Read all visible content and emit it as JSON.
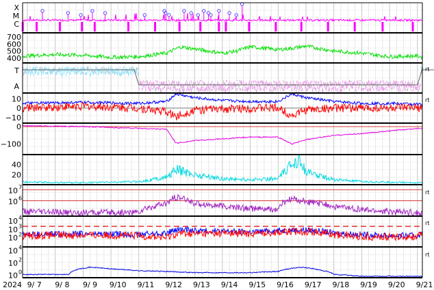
{
  "chart_data": [
    {
      "type": "line",
      "panel": "xray-flares",
      "y_tick_labels": [
        "X",
        "M",
        "C"
      ],
      "series": [
        {
          "color": "#ff00ff"
        }
      ],
      "event_markers": {
        "color": "#6040ff",
        "dates_approx": [
          "9/7 13:00",
          "9/8 11:00",
          "9/8 22:00",
          "9/9 8:00",
          "9/9 19:00",
          "9/11 5:00",
          "9/11 22:00",
          "9/11 23:00",
          "9/12 2:00",
          "9/12 15:00",
          "9/12 21:00",
          "9/13 3:00",
          "9/13 8:00",
          "9/13 12:00",
          "9/13 14:00",
          "9/13 21:00",
          "9/14 6:00",
          "9/14 12:00",
          "9/14 17:00"
        ]
      },
      "pink_bars_dates_approx": [
        "9/6 20:00",
        "9/7 8:00",
        "9/8 4:00",
        "9/8 23:00",
        "9/9 10:00",
        "9/10 15:00",
        "9/11 14:00",
        "9/12 11:00",
        "9/13 5:00",
        "9/13 21:00",
        "9/14 3:00",
        "9/14 23:00",
        "9/15 22:00",
        "9/16 20:00",
        "9/17 19:00",
        "9/18 18:00",
        "9/19 18:00",
        "9/20 20:00",
        "9/21 19:00"
      ]
    },
    {
      "type": "line",
      "panel": "solar-wind-speed",
      "y_tick_labels": [
        "700",
        "600",
        "500",
        "400"
      ],
      "ylim": [
        330,
        760
      ],
      "series": [
        {
          "color": "#00e000"
        }
      ],
      "x": [
        "9/6 20:00",
        "9/8 0:00",
        "9/9 0:00",
        "9/10 0:00",
        "9/11 0:00",
        "9/12 0:00",
        "9/12 12:00",
        "9/13 0:00",
        "9/14 0:00",
        "9/14 12:00",
        "9/15 0:00",
        "9/16 0:00",
        "9/16 12:00",
        "9/17 0:00",
        "9/18 0:00",
        "9/19 0:00",
        "9/20 0:00",
        "9/21 0:00",
        "9/21 12:00",
        "9/21 20:00"
      ],
      "y": [
        430,
        450,
        440,
        410,
        420,
        470,
        560,
        530,
        470,
        500,
        560,
        520,
        540,
        570,
        500,
        470,
        420,
        430,
        380,
        410
      ]
    },
    {
      "type": "scatter",
      "panel": "imf-direction",
      "y_tick_labels": [
        "T",
        "A"
      ],
      "series": [
        {
          "color": "#a0e8ff"
        },
        {
          "color": "#f0a8f0"
        },
        {
          "color": "#c8c8c8"
        }
      ],
      "level_line": {
        "color": "#606060",
        "x": [
          "9/6 20:00",
          "9/10 20:00",
          "9/11 0:00",
          "9/21 0:00",
          "9/21 4:00",
          "9/21 20:00"
        ],
        "y": [
          "T",
          "T",
          "A",
          "A",
          "T",
          "T"
        ]
      }
    },
    {
      "type": "line",
      "panel": "imf-bt-bz",
      "y_tick_labels": [
        "10",
        "0",
        "−10"
      ],
      "ylim": [
        -16,
        16
      ],
      "series": [
        {
          "color": "#0000ff",
          "x": [
            "9/6 20:00",
            "9/9 0:00",
            "9/11 0:00",
            "9/12 0:00",
            "9/12 8:00",
            "9/13 0:00",
            "9/14 0:00",
            "9/15 0:00",
            "9/16 0:00",
            "9/16 12:00",
            "9/17 0:00",
            "9/18 0:00",
            "9/19 0:00",
            "9/20 0:00",
            "9/21 0:00",
            "9/21 20:00"
          ],
          "y": [
            5,
            6,
            5,
            7,
            15,
            11,
            8,
            7,
            7,
            15,
            11,
            7,
            5,
            5,
            4,
            5
          ]
        },
        {
          "color": "#ff0000",
          "x": [
            "9/6 20:00",
            "9/9 0:00",
            "9/11 0:00",
            "9/12 0:00",
            "9/12 8:00",
            "9/13 0:00",
            "9/14 0:00",
            "9/15 0:00",
            "9/16 0:00",
            "9/16 12:00",
            "9/17 0:00",
            "9/18 0:00",
            "9/19 0:00",
            "9/20 0:00",
            "9/21 0:00",
            "9/21 20:00"
          ],
          "y": [
            0,
            2,
            0,
            -4,
            -9,
            -2,
            -1,
            0,
            0,
            -8,
            -2,
            0,
            0,
            0,
            0,
            0
          ]
        }
      ]
    },
    {
      "type": "line",
      "panel": "magnetometer",
      "y_tick_labels": [
        "0",
        "−100"
      ],
      "ylim": [
        -160,
        20
      ],
      "series": [
        {
          "color": "#e000e0"
        }
      ],
      "x": [
        "9/6 20:00",
        "9/9 0:00",
        "9/11 0:00",
        "9/12 0:00",
        "9/12 8:00",
        "9/13 0:00",
        "9/14 0:00",
        "9/15 0:00",
        "9/16 0:00",
        "9/16 12:00",
        "9/17 0:00",
        "9/18 0:00",
        "9/19 0:00",
        "9/20 0:00",
        "9/21 0:00",
        "9/21 20:00"
      ],
      "y": [
        5,
        0,
        -10,
        -15,
        -95,
        -80,
        -70,
        -60,
        -60,
        -100,
        -75,
        -50,
        -40,
        -25,
        -10,
        -5
      ]
    },
    {
      "type": "line",
      "panel": "density",
      "y_tick_labels": [
        "40",
        "20"
      ],
      "ylim": [
        0,
        60
      ],
      "series": [
        {
          "color": "#00d8e0"
        }
      ],
      "x": [
        "9/6 20:00",
        "9/9 0:00",
        "9/11 0:00",
        "9/12 0:00",
        "9/12 8:00",
        "9/13 0:00",
        "9/14 0:00",
        "9/15 0:00",
        "9/16 0:00",
        "9/16 18:00",
        "9/17 0:00",
        "9/18 0:00",
        "9/19 0:00",
        "9/20 0:00",
        "9/21 0:00",
        "9/21 20:00"
      ],
      "y": [
        5,
        4,
        6,
        15,
        30,
        20,
        12,
        10,
        12,
        55,
        25,
        10,
        6,
        5,
        4,
        5
      ]
    },
    {
      "type": "line",
      "panel": "electron-flux",
      "y_tick_labels": [
        "10^7",
        "10^6"
      ],
      "log_scale": true,
      "ylim": [
        40000,
        30000000
      ],
      "series": [
        {
          "color": "#a020c0"
        }
      ],
      "x": [
        "9/6 20:00",
        "9/9 0:00",
        "9/11 0:00",
        "9/12 0:00",
        "9/12 8:00",
        "9/13 0:00",
        "9/14 0:00",
        "9/15 0:00",
        "9/16 0:00",
        "9/16 12:00",
        "9/17 0:00",
        "9/18 0:00",
        "9/19 0:00",
        "9/20 0:00",
        "9/21 0:00",
        "9/21 20:00"
      ],
      "y": [
        100000,
        80000,
        90000,
        500000,
        2000000,
        600000,
        300000,
        200000,
        150000,
        1500000,
        800000,
        300000,
        150000,
        100000,
        80000,
        70000
      ]
    },
    {
      "type": "line",
      "panel": "proton-flux",
      "y_tick_labels": [
        "10^4",
        "10^3",
        "10^2"
      ],
      "log_scale": true,
      "ylim": [
        7,
        30000
      ],
      "threshold_color": "#e00000",
      "series": [
        {
          "color": "#0000ff",
          "x": [
            "9/6 20:00",
            "9/9 0:00",
            "9/11 0:00",
            "9/12 0:00",
            "9/12 12:00",
            "9/13 0:00",
            "9/14 0:00",
            "9/15 0:00",
            "9/16 0:00",
            "9/17 0:00",
            "9/18 0:00",
            "9/19 0:00",
            "9/20 0:00",
            "9/21 0:00",
            "9/21 20:00"
          ],
          "y": [
            200,
            250,
            200,
            300,
            800,
            600,
            500,
            400,
            600,
            700,
            300,
            200,
            150,
            150,
            600
          ]
        },
        {
          "color": "#ff0000",
          "x": [
            "9/6 20:00",
            "9/9 0:00",
            "9/11 0:00",
            "9/12 0:00",
            "9/12 12:00",
            "9/13 0:00",
            "9/14 0:00",
            "9/15 0:00",
            "9/16 0:00",
            "9/17 0:00",
            "9/18 0:00",
            "9/19 0:00",
            "9/20 0:00",
            "9/21 0:00",
            "9/21 20:00"
          ],
          "y": [
            150,
            180,
            150,
            80,
            300,
            250,
            300,
            250,
            400,
            500,
            200,
            120,
            100,
            120,
            400
          ]
        }
      ]
    },
    {
      "type": "line",
      "panel": "high-energy-protons",
      "y_tick_labels": [
        "10^4",
        "10^2",
        "10^0"
      ],
      "log_scale": true,
      "ylim": [
        0.3,
        30000
      ],
      "series": [
        {
          "color": "#0000e0"
        }
      ],
      "x": [
        "9/6 20:00",
        "9/8 12:00",
        "9/9 6:00",
        "9/10 0:00",
        "9/11 0:00",
        "9/12 0:00",
        "9/13 0:00",
        "9/14 0:00",
        "9/15 0:00",
        "9/16 0:00",
        "9/16 20:00",
        "9/17 12:00",
        "9/18 0:00",
        "9/19 0:00",
        "9/21 20:00"
      ],
      "y": [
        1,
        1,
        15,
        8,
        4,
        3,
        2,
        2,
        2,
        3,
        15,
        5,
        1,
        0.5,
        0.5
      ]
    }
  ],
  "x_axis": {
    "year_label": "2024",
    "tick_labels": [
      "9/ 7",
      "9/ 8",
      "9/ 9",
      "9/10",
      "9/11",
      "9/12",
      "9/13",
      "9/14",
      "9/15",
      "9/16",
      "9/17",
      "9/18",
      "9/19",
      "9/20",
      "9/21"
    ]
  },
  "right_edge_labels": [
    "rt",
    "rt",
    "rt",
    "rt",
    "rt"
  ],
  "grid": true,
  "grid_color": "#d0d0d0",
  "frame_color": "#000000"
}
